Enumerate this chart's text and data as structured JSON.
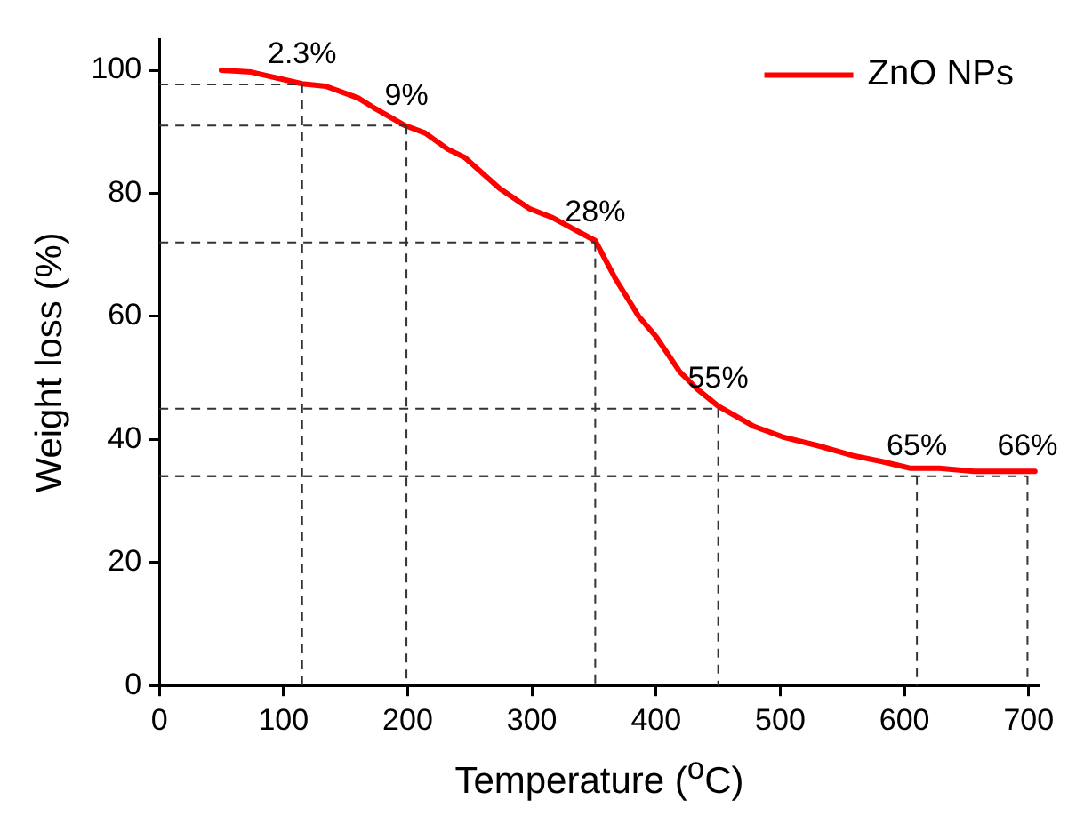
{
  "chart_data": {
    "type": "line",
    "xlabel": "Temperature ($^{o}$C)",
    "ylabel": "Weight loss (%)",
    "xlim": [
      0,
      708
    ],
    "xticks": [
      0,
      100,
      200,
      300,
      400,
      500,
      600,
      700
    ],
    "ylim": [
      0,
      105
    ],
    "yticks": [
      0,
      20,
      40,
      60,
      80,
      100
    ],
    "legend": "top right",
    "line_style": "solid",
    "marker": "none",
    "series": [
      {
        "name": "ZnO NPs",
        "color": "#ff0000",
        "x": [
          50,
          74,
          115,
          134,
          160,
          172,
          198,
          214,
          232,
          246,
          274,
          298,
          316,
          351,
          367,
          386,
          400,
          419,
          433,
          450,
          479,
          502,
          530,
          558,
          582,
          605,
          628,
          656,
          675,
          705
        ],
        "values": [
          100,
          99.7,
          97.8,
          97.4,
          95.5,
          94,
          91,
          89.8,
          87.2,
          85.8,
          80.8,
          77.5,
          76.1,
          72.3,
          66.2,
          60,
          56.7,
          51,
          48.2,
          45.4,
          42.1,
          40.4,
          39,
          37.4,
          36.4,
          35.3,
          35.3,
          34.8,
          34.8,
          34.8
        ]
      }
    ],
    "annotations": [
      {
        "text": "2.3%",
        "x": 115,
        "y": 97.7
      },
      {
        "text": "9%",
        "x": 199,
        "y": 91
      },
      {
        "text": "28%",
        "x": 351,
        "y": 72
      },
      {
        "text": "55%",
        "x": 450,
        "y": 45
      },
      {
        "text": "65%",
        "x": 610,
        "y": 34
      },
      {
        "text": "66%",
        "x": 699,
        "y": 34
      }
    ]
  }
}
